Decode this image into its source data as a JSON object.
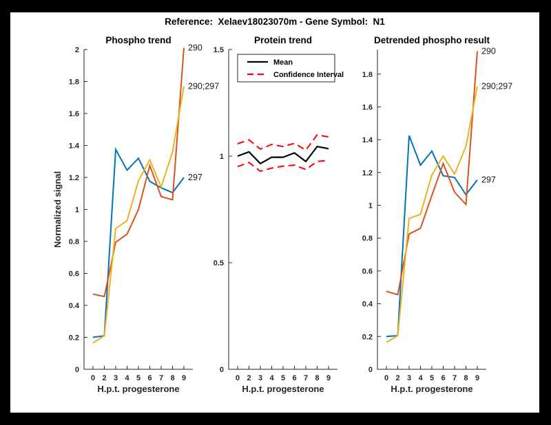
{
  "window": {
    "title": "Reference:  Xelaev18023070m - Gene Symbol:  N1"
  },
  "palette": {
    "frame_bg": "#000000",
    "figure_bg": "#FFFFFF",
    "axis_color": "#262626",
    "blue": "#0072BD",
    "orange": "#D95319",
    "yellow": "#EDB120",
    "mean_black": "#000000",
    "ci_red": "#FF0000"
  },
  "chart_data": [
    {
      "type": "line",
      "title": "Phospho trend",
      "xlabel": "H.p.t. progesterone",
      "ylabel": "Normalized signal",
      "categories": [
        "0",
        "2",
        "3",
        "4",
        "5",
        "6",
        "7",
        "8",
        "9"
      ],
      "ylim": [
        0,
        2
      ],
      "ytick_values": [
        0,
        0.2,
        0.4,
        0.6,
        0.8,
        1,
        1.2,
        1.4,
        1.6,
        1.8,
        2
      ],
      "ytick_labels": [
        "0",
        "0.2",
        "0.4",
        "0.6",
        "0.8",
        "1",
        "1.2",
        "1.4",
        "1.6",
        "1.8",
        "2"
      ],
      "grid": false,
      "series": [
        {
          "name": "297",
          "color": "#0072BD",
          "style": "solid",
          "values": [
            0.2,
            0.21,
            1.375,
            1.245,
            1.32,
            1.175,
            1.135,
            1.105,
            1.2
          ],
          "end_label": "297"
        },
        {
          "name": "290",
          "color": "#D95319",
          "style": "solid",
          "values": [
            0.47,
            0.455,
            0.795,
            0.845,
            1.0,
            1.275,
            1.08,
            1.06,
            2.01
          ],
          "end_label": "290"
        },
        {
          "name": "290;297",
          "color": "#EDB120",
          "style": "solid",
          "values": [
            0.165,
            0.21,
            0.88,
            0.93,
            1.18,
            1.31,
            1.14,
            1.36,
            1.77
          ],
          "end_label": "290;297"
        }
      ]
    },
    {
      "type": "line",
      "title": "Protein trend",
      "xlabel": "H.p.t. progesterone",
      "ylabel": "",
      "categories": [
        "0",
        "2",
        "3",
        "4",
        "5",
        "6",
        "7",
        "8",
        "9"
      ],
      "ylim": [
        0,
        1.5
      ],
      "ytick_values": [
        0,
        0.5,
        1,
        1.5
      ],
      "ytick_labels": [
        "0",
        "0.5",
        "1",
        "1.5"
      ],
      "grid": false,
      "legend": {
        "position": "northwest",
        "items": [
          {
            "label": "Mean",
            "color": "#000000",
            "style": "solid"
          },
          {
            "label": "Confidence Interval",
            "color": "#FF0000",
            "style": "dashed"
          }
        ]
      },
      "series": [
        {
          "name": "Mean",
          "color": "#000000",
          "style": "solid",
          "values": [
            1.0,
            1.02,
            0.965,
            0.995,
            0.995,
            1.015,
            0.975,
            1.045,
            1.035
          ],
          "end_label": ""
        },
        {
          "name": "CI upper",
          "color": "#FF0000",
          "style": "dashed",
          "values": [
            1.058,
            1.076,
            1.033,
            1.055,
            1.045,
            1.06,
            1.028,
            1.1,
            1.09
          ],
          "end_label": ""
        },
        {
          "name": "CI lower",
          "color": "#FF0000",
          "style": "dashed",
          "values": [
            0.951,
            0.97,
            0.929,
            0.944,
            0.953,
            0.958,
            0.937,
            0.975,
            0.98
          ],
          "end_label": ""
        }
      ]
    },
    {
      "type": "line",
      "title": "Detrended phospho result",
      "xlabel": "H.p.t. progesterone",
      "ylabel": "",
      "categories": [
        "0",
        "2",
        "3",
        "4",
        "5",
        "6",
        "7",
        "8",
        "9"
      ],
      "ylim": [
        0,
        1.95
      ],
      "ytick_values": [
        0,
        0.2,
        0.4,
        0.6,
        0.8,
        1,
        1.2,
        1.4,
        1.6,
        1.8
      ],
      "ytick_labels": [
        "0",
        "0.2",
        "0.4",
        "0.6",
        "0.8",
        "1",
        "1.2",
        "1.4",
        "1.6",
        "1.8"
      ],
      "grid": false,
      "series": [
        {
          "name": "297",
          "color": "#0072BD",
          "style": "solid",
          "values": [
            0.2,
            0.205,
            1.425,
            1.245,
            1.33,
            1.18,
            1.17,
            1.065,
            1.155
          ],
          "end_label": "297"
        },
        {
          "name": "290",
          "color": "#D95319",
          "style": "solid",
          "values": [
            0.475,
            0.455,
            0.825,
            0.86,
            1.06,
            1.255,
            1.08,
            1.005,
            1.94
          ],
          "end_label": "290"
        },
        {
          "name": "290;297",
          "color": "#EDB120",
          "style": "solid",
          "values": [
            0.165,
            0.205,
            0.92,
            0.945,
            1.185,
            1.3,
            1.19,
            1.36,
            1.725
          ],
          "end_label": "290;297"
        }
      ]
    }
  ]
}
